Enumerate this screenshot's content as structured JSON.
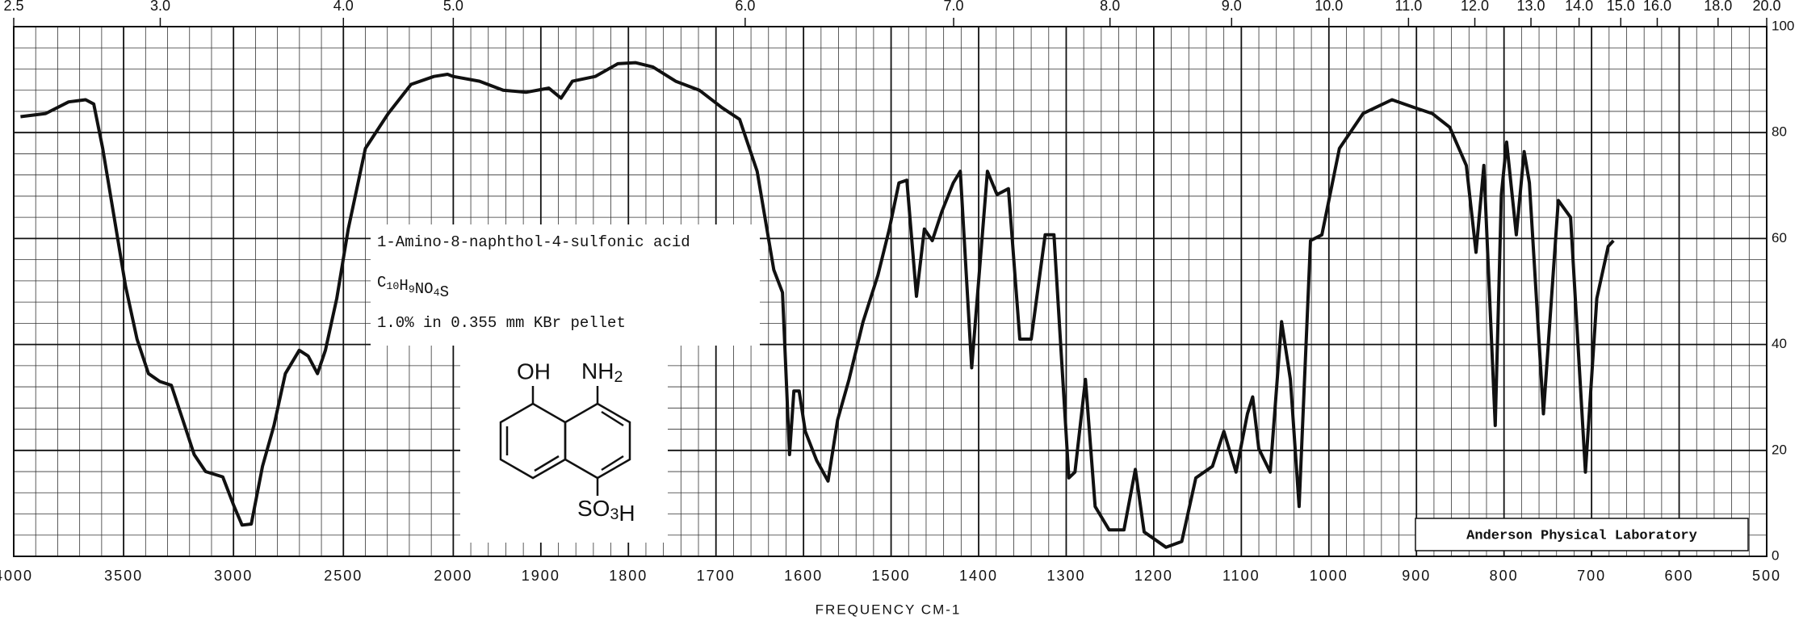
{
  "chart_data": {
    "type": "line",
    "xlabel": "FREQUENCY CM-1",
    "annotations": {
      "compound": "1-Amino-8-naphthol-4-sulfonic acid",
      "formula": "C10H9NO4S",
      "sample": "1.0% in 0.355 mm KBr pellet",
      "lab": "Anderson Physical Laboratory",
      "group_oh": "OH",
      "group_nh2": "NH2",
      "group_so3h": "SO3H"
    },
    "xticks": [
      4000,
      3500,
      3000,
      2500,
      2000,
      1900,
      1800,
      1700,
      1600,
      1500,
      1400,
      1300,
      1200,
      1100,
      1000,
      900,
      800,
      700,
      600,
      500
    ],
    "xlim": [
      4000,
      500
    ],
    "x2ticks": [
      {
        "value": 2.5,
        "label": "2.5"
      },
      {
        "value": 3,
        "label": "3.0"
      },
      {
        "value": 4,
        "label": "4.0"
      },
      {
        "value": 5,
        "label": "5.0"
      },
      {
        "value": 6,
        "label": "6.0"
      },
      {
        "value": 7,
        "label": "7.0"
      },
      {
        "value": 8,
        "label": "8.0"
      },
      {
        "value": 9,
        "label": "9.0"
      },
      {
        "value": 10,
        "label": "10.0"
      },
      {
        "value": 11,
        "label": "11.0"
      },
      {
        "value": 12,
        "label": "12.0"
      },
      {
        "value": 13,
        "label": "13.0"
      },
      {
        "value": 14,
        "label": "14.0"
      },
      {
        "value": 15,
        "label": "15.0"
      },
      {
        "value": 16,
        "label": "16.0"
      },
      {
        "value": 18,
        "label": "18.0"
      },
      {
        "value": 20,
        "label": "20.0"
      }
    ],
    "ylim": [
      0,
      100
    ],
    "yticks": [
      0,
      20,
      40,
      60,
      80,
      100
    ],
    "grid": true,
    "x": [
      3969,
      3855,
      3750,
      3673,
      3636,
      3595,
      3543,
      3491,
      3439,
      3387,
      3335,
      3283,
      3231,
      3179,
      3127,
      3049,
      2997,
      2961,
      2919,
      2868,
      2816,
      2764,
      2701,
      2660,
      2618,
      2582,
      2530,
      2478,
      2400,
      2296,
      2192,
      2088,
      2026,
      2000,
      1970,
      1943,
      1917,
      1891,
      1877,
      1864,
      1838,
      1812,
      1792,
      1772,
      1746,
      1719,
      1693,
      1673,
      1653,
      1634,
      1624,
      1616,
      1611,
      1605,
      1598,
      1585,
      1572,
      1561,
      1548,
      1532,
      1515,
      1502,
      1491,
      1482,
      1471,
      1462,
      1453,
      1442,
      1429,
      1421,
      1408,
      1390,
      1379,
      1366,
      1353,
      1340,
      1324,
      1314,
      1297,
      1290,
      1278,
      1267,
      1251,
      1234,
      1221,
      1211,
      1186,
      1168,
      1152,
      1133,
      1120,
      1106,
      1093,
      1087,
      1080,
      1067,
      1054,
      1044,
      1034,
      1021,
      1008,
      988,
      961,
      928,
      902,
      882,
      862,
      843,
      832,
      823,
      810,
      803,
      797,
      786,
      777,
      771,
      755,
      738,
      724,
      707,
      694,
      681,
      675
    ],
    "series": [
      {
        "name": "1-Amino-8-naphthol-4-sulfonic acid",
        "color": "#111111",
        "values": [
          83.0,
          83.6,
          85.8,
          86.2,
          85.4,
          77,
          64,
          51,
          41,
          34.5,
          33,
          32.3,
          25.8,
          19.2,
          16,
          15,
          9.4,
          5.9,
          6.1,
          17,
          24.7,
          34.5,
          38.9,
          37.8,
          34.5,
          38.9,
          48.7,
          61.8,
          77,
          83.6,
          89.1,
          90.6,
          91,
          90.6,
          89.7,
          88,
          87.6,
          88.4,
          86.5,
          89.7,
          90.6,
          93,
          93.2,
          92.4,
          89.7,
          88,
          84.7,
          82.5,
          72.7,
          54.1,
          49.8,
          19.2,
          31.2,
          31.2,
          23.6,
          18.1,
          14.2,
          25.8,
          33.4,
          44.3,
          53.1,
          61.8,
          70.5,
          71,
          49.1,
          61.8,
          59.6,
          65.1,
          70.5,
          72.7,
          35.6,
          72.7,
          68.3,
          69.4,
          41,
          41,
          60.7,
          60.7,
          14.8,
          15.9,
          33.4,
          9.4,
          5,
          5,
          16.4,
          4.6,
          1.7,
          2.8,
          14.8,
          17,
          23.6,
          15.9,
          26.9,
          30.1,
          20.3,
          15.9,
          44.3,
          33.4,
          9.4,
          59.6,
          60.7,
          77,
          83.6,
          86.2,
          84.7,
          83.6,
          81,
          73.8,
          57.4,
          73.8,
          24.7,
          68.3,
          78.2,
          60.7,
          76.4,
          70.5,
          26.9,
          67.2,
          64,
          15.9,
          48.7,
          58.5,
          59.6
        ]
      }
    ]
  }
}
